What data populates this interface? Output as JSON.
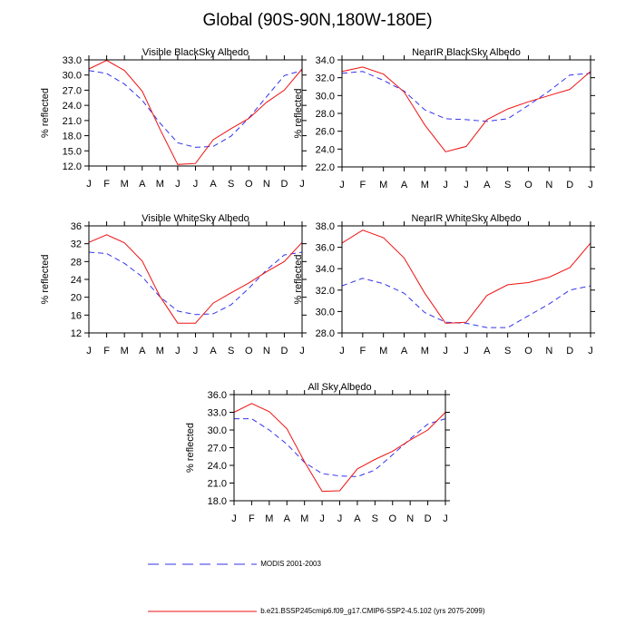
{
  "page": {
    "title": "Global (90S-90N,180W-180E)"
  },
  "months": [
    "J",
    "F",
    "M",
    "A",
    "M",
    "J",
    "J",
    "A",
    "S",
    "O",
    "N",
    "D",
    "J"
  ],
  "legend": [
    {
      "label": "MODIS 2001-2003",
      "color": "#3333ee",
      "dashed": true
    },
    {
      "label": "b.e21.BSSP245cmip6.f09_g17.CMIP6-SSP2-4.5.102 (yrs 2075-2099)",
      "color": "#ee1111",
      "dashed": false
    }
  ],
  "chart_data": [
    {
      "type": "line",
      "title": "Visible BlackSky Albedo",
      "ylabel": "% reflected",
      "ylim": [
        12.0,
        33.0
      ],
      "yticks": [
        "12.0",
        "15.0",
        "18.0",
        "21.0",
        "24.0",
        "27.0",
        "30.0",
        "33.0"
      ],
      "series": [
        {
          "name": "MODIS 2001-2003",
          "values": [
            30.9,
            30.3,
            28.2,
            25.0,
            20.5,
            16.6,
            15.7,
            15.9,
            17.9,
            21.5,
            25.7,
            29.9,
            30.9
          ]
        },
        {
          "name": "b.e21.BSSP245cmip6.f09_g17.CMIP6-SSP2-4.5.102 (yrs 2075-2099)",
          "values": [
            31.2,
            32.9,
            30.9,
            26.8,
            19.3,
            12.3,
            12.5,
            17.2,
            19.4,
            21.4,
            24.6,
            27.0,
            31.2
          ]
        }
      ]
    },
    {
      "type": "line",
      "title": "NearIR BlackSky Albedo",
      "ylabel": "% reflected",
      "ylim": [
        22.0,
        34.0
      ],
      "yticks": [
        "22.0",
        "24.0",
        "26.0",
        "28.0",
        "30.0",
        "32.0",
        "34.0"
      ],
      "series": [
        {
          "name": "MODIS 2001-2003",
          "values": [
            32.5,
            32.7,
            31.7,
            30.5,
            28.4,
            27.4,
            27.3,
            27.1,
            27.4,
            28.9,
            30.5,
            32.3,
            32.5
          ]
        },
        {
          "name": "b.e21.BSSP245cmip6.f09_g17.CMIP6-SSP2-4.5.102 (yrs 2075-2099)",
          "values": [
            32.7,
            33.2,
            32.4,
            30.4,
            26.7,
            23.7,
            24.3,
            27.3,
            28.5,
            29.3,
            30.0,
            30.7,
            32.7
          ]
        }
      ]
    },
    {
      "type": "line",
      "title": "Visible WhiteSky Albedo",
      "ylabel": "% reflected",
      "ylim": [
        12,
        36
      ],
      "yticks": [
        "12",
        "16",
        "20",
        "24",
        "28",
        "32",
        "36"
      ],
      "series": [
        {
          "name": "MODIS 2001-2003",
          "values": [
            30.1,
            29.8,
            27.6,
            24.6,
            20.1,
            16.9,
            16.1,
            16.3,
            18.3,
            22.0,
            26.1,
            29.5,
            30.1
          ]
        },
        {
          "name": "b.e21.BSSP245cmip6.f09_g17.CMIP6-SSP2-4.5.102 (yrs 2075-2099)",
          "values": [
            32.3,
            34.0,
            32.2,
            28.1,
            20.2,
            14.2,
            14.2,
            18.7,
            21.0,
            23.2,
            25.7,
            28.0,
            32.3
          ]
        }
      ]
    },
    {
      "type": "line",
      "title": "NearIR WhiteSky Albedo",
      "ylabel": "% reflected",
      "ylim": [
        28.0,
        38.0
      ],
      "yticks": [
        "28.0",
        "30.0",
        "32.0",
        "34.0",
        "36.0",
        "38.0"
      ],
      "series": [
        {
          "name": "MODIS 2001-2003",
          "values": [
            32.4,
            33.1,
            32.6,
            31.7,
            29.9,
            29.0,
            28.9,
            28.5,
            28.5,
            29.6,
            30.7,
            32.0,
            32.4
          ]
        },
        {
          "name": "b.e21.BSSP245cmip6.f09_g17.CMIP6-SSP2-4.5.102 (yrs 2075-2099)",
          "values": [
            36.4,
            37.6,
            36.9,
            35.0,
            31.7,
            28.9,
            29.0,
            31.5,
            32.5,
            32.7,
            33.2,
            34.1,
            36.4
          ]
        }
      ]
    },
    {
      "type": "line",
      "title": "All Sky Albedo",
      "ylabel": "% reflected",
      "ylim": [
        18.0,
        36.0
      ],
      "yticks": [
        "18.0",
        "21.0",
        "24.0",
        "27.0",
        "30.0",
        "33.0",
        "36.0"
      ],
      "series": [
        {
          "name": "MODIS 2001-2003",
          "values": [
            31.9,
            31.9,
            30.0,
            27.6,
            24.5,
            22.6,
            22.2,
            22.1,
            23.2,
            25.8,
            28.5,
            31.0,
            31.9
          ]
        },
        {
          "name": "b.e21.BSSP245cmip6.f09_g17.CMIP6-SSP2-4.5.102 (yrs 2075-2099)",
          "values": [
            33.0,
            34.5,
            33.1,
            30.2,
            24.6,
            19.6,
            19.7,
            23.4,
            25.0,
            26.4,
            28.3,
            30.0,
            33.0
          ]
        }
      ]
    }
  ]
}
